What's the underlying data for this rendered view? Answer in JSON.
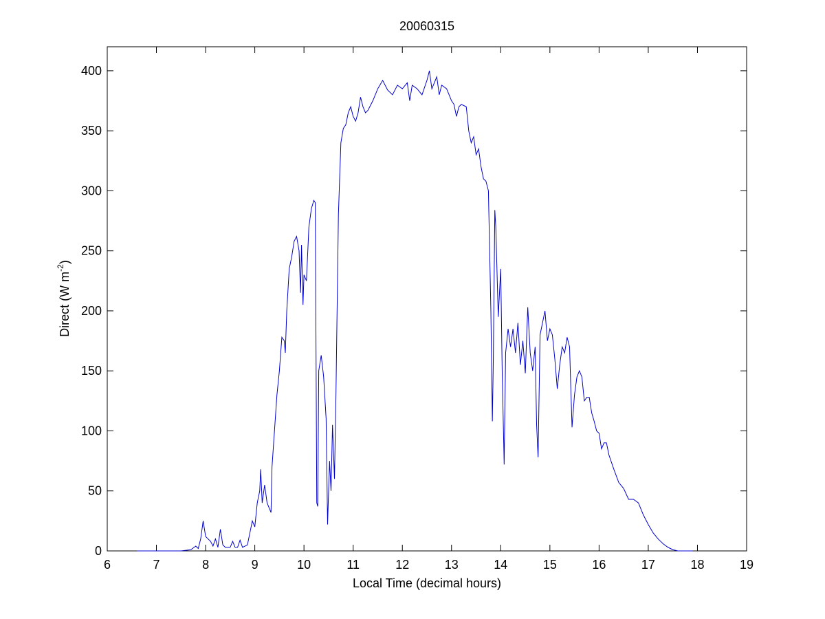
{
  "chart_data": {
    "type": "line",
    "title": "20060315",
    "xlabel": "Local Time (decimal hours)",
    "ylabel": [
      "Direct (W m",
      "-2",
      ")"
    ],
    "xlim": [
      6,
      19
    ],
    "xticks": [
      6,
      7,
      8,
      9,
      10,
      11,
      12,
      13,
      14,
      15,
      16,
      17,
      18,
      19
    ],
    "ylim": [
      0,
      420
    ],
    "yticks": [
      0,
      50,
      100,
      150,
      200,
      250,
      300,
      350,
      400
    ],
    "grid": false,
    "x": [
      6.6,
      7.0,
      7.5,
      7.7,
      7.8,
      7.85,
      7.9,
      7.95,
      8.0,
      8.05,
      8.1,
      8.15,
      8.2,
      8.25,
      8.3,
      8.35,
      8.4,
      8.5,
      8.55,
      8.6,
      8.65,
      8.7,
      8.75,
      8.8,
      8.85,
      8.9,
      8.95,
      9.0,
      9.05,
      9.1,
      9.12,
      9.15,
      9.2,
      9.25,
      9.3,
      9.33,
      9.35,
      9.4,
      9.45,
      9.5,
      9.55,
      9.6,
      9.62,
      9.65,
      9.7,
      9.75,
      9.8,
      9.85,
      9.9,
      9.93,
      9.95,
      9.98,
      10.0,
      10.05,
      10.1,
      10.15,
      10.2,
      10.23,
      10.26,
      10.28,
      10.3,
      10.35,
      10.4,
      10.45,
      10.48,
      10.52,
      10.55,
      10.58,
      10.62,
      10.65,
      10.7,
      10.75,
      10.8,
      10.85,
      10.9,
      10.95,
      11.0,
      11.05,
      11.1,
      11.15,
      11.2,
      11.25,
      11.3,
      11.4,
      11.5,
      11.6,
      11.7,
      11.8,
      11.9,
      12.0,
      12.1,
      12.15,
      12.2,
      12.3,
      12.4,
      12.5,
      12.55,
      12.6,
      12.7,
      12.75,
      12.8,
      12.9,
      13.0,
      13.05,
      13.1,
      13.15,
      13.2,
      13.3,
      13.35,
      13.4,
      13.45,
      13.5,
      13.55,
      13.6,
      13.65,
      13.7,
      13.75,
      13.8,
      13.83,
      13.85,
      13.88,
      13.9,
      13.95,
      14.0,
      14.03,
      14.07,
      14.1,
      14.15,
      14.2,
      14.25,
      14.3,
      14.35,
      14.4,
      14.45,
      14.5,
      14.55,
      14.6,
      14.65,
      14.7,
      14.73,
      14.76,
      14.8,
      14.85,
      14.9,
      14.95,
      15.0,
      15.05,
      15.1,
      15.15,
      15.2,
      15.25,
      15.3,
      15.35,
      15.4,
      15.45,
      15.5,
      15.55,
      15.6,
      15.65,
      15.7,
      15.75,
      15.8,
      15.85,
      15.9,
      15.95,
      16.0,
      16.05,
      16.1,
      16.15,
      16.2,
      16.3,
      16.4,
      16.5,
      16.6,
      16.7,
      16.8,
      16.9,
      17.0,
      17.1,
      17.2,
      17.3,
      17.4,
      17.5,
      17.6,
      17.9
    ],
    "series": [
      {
        "color": "#0000cc",
        "values": [
          0,
          0,
          0,
          1,
          4,
          2,
          10,
          25,
          12,
          10,
          8,
          4,
          10,
          3,
          18,
          5,
          3,
          3,
          8,
          3,
          3,
          9,
          3,
          4,
          5,
          15,
          25,
          20,
          40,
          50,
          68,
          40,
          55,
          40,
          35,
          32,
          70,
          100,
          130,
          150,
          178,
          175,
          165,
          200,
          235,
          245,
          258,
          262,
          250,
          215,
          255,
          205,
          230,
          225,
          270,
          285,
          292,
          290,
          40,
          37,
          150,
          163,
          145,
          110,
          22,
          75,
          50,
          105,
          60,
          130,
          280,
          340,
          352,
          355,
          365,
          370,
          362,
          358,
          365,
          378,
          370,
          365,
          367,
          375,
          385,
          392,
          384,
          380,
          388,
          385,
          390,
          375,
          388,
          385,
          380,
          392,
          400,
          385,
          395,
          380,
          388,
          385,
          375,
          372,
          362,
          370,
          372,
          370,
          350,
          340,
          345,
          330,
          335,
          320,
          310,
          308,
          300,
          200,
          108,
          160,
          284,
          270,
          195,
          235,
          150,
          72,
          165,
          185,
          170,
          185,
          165,
          190,
          155,
          175,
          148,
          203,
          165,
          150,
          170,
          105,
          78,
          180,
          190,
          200,
          175,
          185,
          180,
          160,
          135,
          155,
          170,
          165,
          178,
          170,
          103,
          130,
          145,
          150,
          145,
          125,
          128,
          128,
          115,
          108,
          100,
          98,
          85,
          90,
          90,
          80,
          68,
          57,
          52,
          43,
          43,
          40,
          30,
          22,
          15,
          10,
          6,
          3,
          1,
          0,
          0
        ]
      }
    ]
  }
}
